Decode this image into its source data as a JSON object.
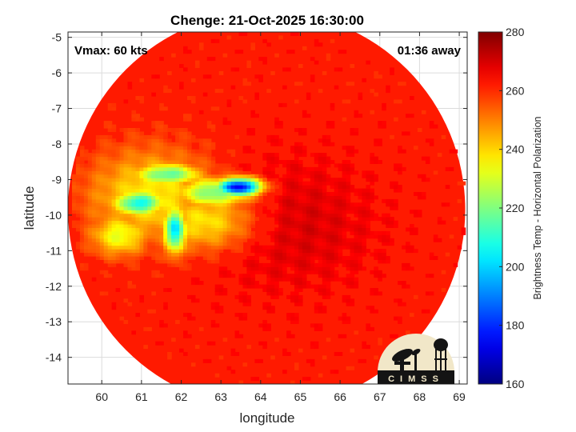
{
  "chart_data": {
    "type": "heatmap",
    "title": "Chenge: 21-Oct-2025 16:30:00",
    "xlabel": "longitude",
    "ylabel": "latitude",
    "xlim": [
      59.15,
      69.2
    ],
    "ylim": [
      -14.75,
      -4.85
    ],
    "x_ticks": [
      60,
      61,
      62,
      63,
      64,
      65,
      66,
      67,
      68,
      69
    ],
    "y_ticks": [
      -5,
      -6,
      -7,
      -8,
      -9,
      -10,
      -11,
      -12,
      -13,
      -14
    ],
    "grid": true,
    "annotations": {
      "vmax": "Vmax: 60 kts",
      "away": "01:36 away"
    },
    "colorbar": {
      "label": "Brightness Temp - Horizontal Polarization",
      "range": [
        160,
        280
      ],
      "ticks": [
        160,
        180,
        200,
        220,
        240,
        260,
        280
      ],
      "colormap": "jet"
    },
    "swath": {
      "center_lon": 64.15,
      "center_lat": -9.85,
      "radius_deg": 5.0,
      "background_value": 262
    },
    "features": [
      {
        "lon": 63.4,
        "lat": -9.25,
        "sigma_lon": 0.4,
        "sigma_lat": 0.18,
        "value": 172
      },
      {
        "lon": 62.8,
        "lat": -9.4,
        "sigma_lon": 0.7,
        "sigma_lat": 0.3,
        "value": 218
      },
      {
        "lon": 61.8,
        "lat": -10.45,
        "sigma_lon": 0.2,
        "sigma_lat": 0.45,
        "value": 200
      },
      {
        "lon": 60.9,
        "lat": -9.7,
        "sigma_lon": 0.45,
        "sigma_lat": 0.25,
        "value": 205
      },
      {
        "lon": 61.6,
        "lat": -8.9,
        "sigma_lon": 0.6,
        "sigma_lat": 0.22,
        "value": 215
      },
      {
        "lon": 61.2,
        "lat": -9.5,
        "sigma_lon": 1.1,
        "sigma_lat": 0.9,
        "value": 236
      },
      {
        "lon": 62.5,
        "lat": -10.2,
        "sigma_lon": 0.9,
        "sigma_lat": 0.6,
        "value": 238
      },
      {
        "lon": 60.4,
        "lat": -10.6,
        "sigma_lon": 0.5,
        "sigma_lat": 0.4,
        "value": 232
      }
    ],
    "cold_core": {
      "lon": 64.6,
      "lat": -10.3,
      "sigma_lon": 1.6,
      "sigma_lat": 1.3,
      "value": 270
    },
    "logo": {
      "text": "CIMSS"
    }
  }
}
